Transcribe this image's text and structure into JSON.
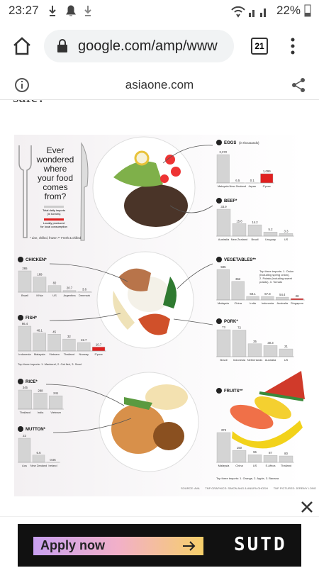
{
  "status_bar": {
    "time": "23:27",
    "battery": "22%"
  },
  "browser": {
    "url": "google.com/amp/www",
    "tab_count": "21",
    "site": "asiaone.com"
  },
  "article": {
    "cut_text": "safe?"
  },
  "infographic": {
    "title_lines": [
      "Ever",
      "wondered",
      "where",
      "your food",
      "comes",
      "from?"
    ],
    "legend": {
      "imports": "Total daily imports",
      "imports_unit": "(in tonnes)",
      "local": "Locally produced",
      "local_sub": "for local consumption"
    },
    "footnote": "* Live, chilled, frozen  ** Fresh & chilled",
    "panels": [
      {
        "title": "EGGS",
        "unit": "(in thousands)",
        "bars": [
          {
            "label": "Malaysia",
            "value": 3372,
            "value_label": "3,372"
          },
          {
            "label": "New Zealand",
            "value": 6.5
          },
          {
            "label": "Japan",
            "value": 0.1
          },
          {
            "label": "S'pore",
            "value": 1099,
            "value_label": "1,099",
            "color": "#e02020"
          }
        ]
      },
      {
        "title": "BEEF*",
        "bars": [
          {
            "label": "Australia",
            "value": 33.9
          },
          {
            "label": "New Zealand",
            "value": 15.8
          },
          {
            "label": "Brazil",
            "value": 14.2
          },
          {
            "label": "Uruguay",
            "value": 5.2
          },
          {
            "label": "US",
            "value": 3.3
          }
        ]
      },
      {
        "title": "CHICKEN*",
        "bars": [
          {
            "label": "Brazil",
            "value": 265
          },
          {
            "label": "M'sia",
            "value": 189
          },
          {
            "label": "US",
            "value": 82
          },
          {
            "label": "Argentina",
            "value": 20.7
          },
          {
            "label": "Denmark",
            "value": 3.6
          }
        ]
      },
      {
        "title": "VEGETABLES**",
        "bars": [
          {
            "label": "Malaysia",
            "value": 595
          },
          {
            "label": "China",
            "value": 362
          },
          {
            "label": "India",
            "value": 69.1
          },
          {
            "label": "Indonesia",
            "value": 67.8
          },
          {
            "label": "Australia",
            "value": 54.4
          },
          {
            "label": "Singapore",
            "value": 28,
            "color": "#e02020"
          }
        ],
        "note": [
          "Top three imports: 1. Onion",
          "(including spring onion),",
          "2. Potato (including sweet",
          "potato), 3. Tomato"
        ]
      },
      {
        "title": "FISH*",
        "bars": [
          {
            "label": "Indonesia",
            "value": 66.4
          },
          {
            "label": "Malaysia",
            "value": 48.1
          },
          {
            "label": "Vietnam",
            "value": 45
          },
          {
            "label": "Thailand",
            "value": 32
          },
          {
            "label": "Norway",
            "value": 22.7
          },
          {
            "label": "S'pore",
            "value": 10.7,
            "color": "#e02020"
          }
        ],
        "note": [
          "Top three imports: 1. Mackerel, 2. Cat fish, 3. Scad"
        ]
      },
      {
        "title": "PORK*",
        "bars": [
          {
            "label": "Brazil",
            "value": 73
          },
          {
            "label": "Indonesia",
            "value": 72
          },
          {
            "label": "Netherlands",
            "value": 35
          },
          {
            "label": "Australia",
            "value": 30.3
          },
          {
            "label": "US",
            "value": 21
          }
        ]
      },
      {
        "title": "RICE*",
        "bars": [
          {
            "label": "Thailand",
            "value": 345
          },
          {
            "label": "India",
            "value": 288
          },
          {
            "label": "Vietnam",
            "value": 241
          }
        ]
      },
      {
        "title": "MUTTON*",
        "bars": [
          {
            "label": "Aus",
            "value": 22
          },
          {
            "label": "New Zealand",
            "value": 6.6
          },
          {
            "label": "Ireland",
            "value": 0.06
          }
        ]
      },
      {
        "title": "FRUITS**",
        "bars": [
          {
            "label": "Malaysia",
            "value": 373
          },
          {
            "label": "China",
            "value": 150
          },
          {
            "label": "US",
            "value": 96
          },
          {
            "label": "S.Africa",
            "value": 87
          },
          {
            "label": "Thailand",
            "value": 80
          }
        ],
        "note": [
          "Top three imports: 1. Orange, 2. Apple, 3. Banana"
        ]
      }
    ],
    "credits": [
      "SOURCE: AVA",
      "TNP GRAPHICS: SIMON ANG & ANUPA GHOSH",
      "TNP PICTURES: JEREMY LONG"
    ]
  },
  "ad": {
    "button": "Apply now",
    "brand": "SUTD"
  }
}
